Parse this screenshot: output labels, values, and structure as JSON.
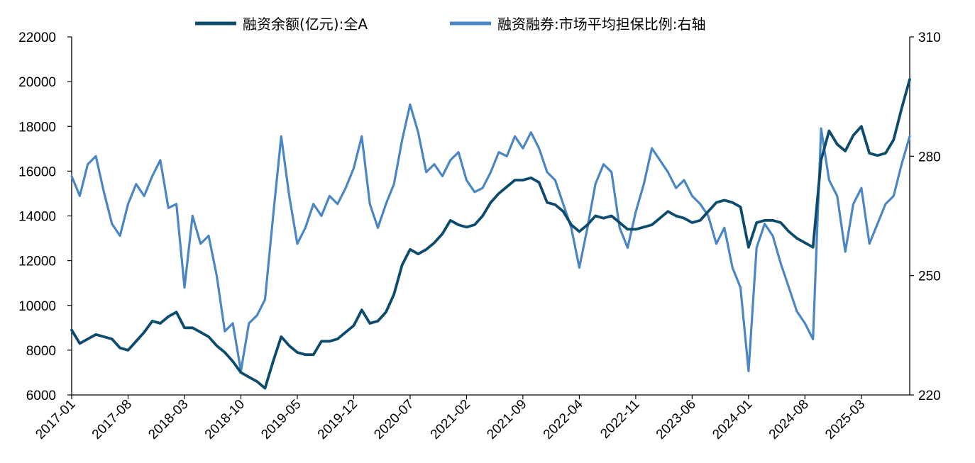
{
  "chart_data": {
    "type": "line",
    "title": "",
    "legend": {
      "placement": "top-center",
      "entries": [
        "融资余额(亿元):全A",
        "融资融券:市场平均担保比例:右轴"
      ]
    },
    "x_axis": {
      "tick_labels": [
        "2017-01",
        "2017-08",
        "2018-03",
        "2018-10",
        "2019-05",
        "2019-12",
        "2020-07",
        "2021-02",
        "2021-09",
        "2022-04",
        "2022-11",
        "2023-06",
        "2024-01",
        "2024-08",
        "2025-03"
      ],
      "range": [
        "2017-01",
        "2025-09"
      ]
    },
    "y_left": {
      "range": [
        6000,
        22000
      ],
      "tick_labels": [
        "6000",
        "8000",
        "10000",
        "12000",
        "14000",
        "16000",
        "18000",
        "20000",
        "22000"
      ]
    },
    "y_right": {
      "range": [
        220,
        310
      ],
      "tick_labels": [
        "220",
        "250",
        "280",
        "310"
      ]
    },
    "series": [
      {
        "name": "融资余额(亿元):全A",
        "axis": "left",
        "color": "#0d4b6e",
        "points": [
          [
            "2017-01",
            8900
          ],
          [
            "2017-02",
            8300
          ],
          [
            "2017-03",
            8500
          ],
          [
            "2017-04",
            8700
          ],
          [
            "2017-05",
            8600
          ],
          [
            "2017-06",
            8500
          ],
          [
            "2017-07",
            8100
          ],
          [
            "2017-08",
            8000
          ],
          [
            "2017-09",
            8400
          ],
          [
            "2017-10",
            8800
          ],
          [
            "2017-11",
            9300
          ],
          [
            "2017-12",
            9200
          ],
          [
            "2018-01",
            9500
          ],
          [
            "2018-02",
            9700
          ],
          [
            "2018-03",
            9000
          ],
          [
            "2018-04",
            9000
          ],
          [
            "2018-05",
            8800
          ],
          [
            "2018-06",
            8600
          ],
          [
            "2018-07",
            8200
          ],
          [
            "2018-08",
            7900
          ],
          [
            "2018-09",
            7500
          ],
          [
            "2018-10",
            7000
          ],
          [
            "2018-11",
            6800
          ],
          [
            "2018-12",
            6600
          ],
          [
            "2019-01",
            6300
          ],
          [
            "2019-02",
            7500
          ],
          [
            "2019-03",
            8600
          ],
          [
            "2019-04",
            8200
          ],
          [
            "2019-05",
            7900
          ],
          [
            "2019-06",
            7800
          ],
          [
            "2019-07",
            7800
          ],
          [
            "2019-08",
            8400
          ],
          [
            "2019-09",
            8400
          ],
          [
            "2019-10",
            8500
          ],
          [
            "2019-11",
            8800
          ],
          [
            "2019-12",
            9100
          ],
          [
            "2020-01",
            9800
          ],
          [
            "2020-02",
            9200
          ],
          [
            "2020-03",
            9300
          ],
          [
            "2020-04",
            9700
          ],
          [
            "2020-05",
            10500
          ],
          [
            "2020-06",
            11800
          ],
          [
            "2020-07",
            12500
          ],
          [
            "2020-08",
            12300
          ],
          [
            "2020-09",
            12500
          ],
          [
            "2020-10",
            12800
          ],
          [
            "2020-11",
            13200
          ],
          [
            "2020-12",
            13800
          ],
          [
            "2021-01",
            13600
          ],
          [
            "2021-02",
            13500
          ],
          [
            "2021-03",
            13600
          ],
          [
            "2021-04",
            14000
          ],
          [
            "2021-05",
            14600
          ],
          [
            "2021-06",
            15000
          ],
          [
            "2021-07",
            15300
          ],
          [
            "2021-08",
            15600
          ],
          [
            "2021-09",
            15600
          ],
          [
            "2021-10",
            15700
          ],
          [
            "2021-11",
            15500
          ],
          [
            "2021-12",
            14600
          ],
          [
            "2022-01",
            14500
          ],
          [
            "2022-02",
            14200
          ],
          [
            "2022-03",
            13600
          ],
          [
            "2022-04",
            13300
          ],
          [
            "2022-05",
            13600
          ],
          [
            "2022-06",
            14000
          ],
          [
            "2022-07",
            13900
          ],
          [
            "2022-08",
            14000
          ],
          [
            "2022-09",
            13700
          ],
          [
            "2022-10",
            13400
          ],
          [
            "2022-11",
            13400
          ],
          [
            "2022-12",
            13500
          ],
          [
            "2023-01",
            13600
          ],
          [
            "2023-02",
            13900
          ],
          [
            "2023-03",
            14200
          ],
          [
            "2023-04",
            14000
          ],
          [
            "2023-05",
            13900
          ],
          [
            "2023-06",
            13700
          ],
          [
            "2023-07",
            13800
          ],
          [
            "2023-08",
            14200
          ],
          [
            "2023-09",
            14600
          ],
          [
            "2023-10",
            14700
          ],
          [
            "2023-11",
            14600
          ],
          [
            "2023-12",
            14400
          ],
          [
            "2024-01",
            12600
          ],
          [
            "2024-02",
            13700
          ],
          [
            "2024-03",
            13800
          ],
          [
            "2024-04",
            13800
          ],
          [
            "2024-05",
            13700
          ],
          [
            "2024-06",
            13300
          ],
          [
            "2024-07",
            13000
          ],
          [
            "2024-08",
            12800
          ],
          [
            "2024-09",
            12600
          ],
          [
            "2024-10",
            16500
          ],
          [
            "2024-11",
            17800
          ],
          [
            "2024-12",
            17200
          ],
          [
            "2025-01",
            16900
          ],
          [
            "2025-02",
            17600
          ],
          [
            "2025-03",
            18000
          ],
          [
            "2025-04",
            16800
          ],
          [
            "2025-05",
            16700
          ],
          [
            "2025-06",
            16800
          ],
          [
            "2025-07",
            17400
          ],
          [
            "2025-08",
            18800
          ],
          [
            "2025-09",
            20100
          ]
        ]
      },
      {
        "name": "融资融券:市场平均担保比例:右轴",
        "axis": "right",
        "color": "#4a86c5",
        "points": [
          [
            "2017-01",
            275
          ],
          [
            "2017-02",
            270
          ],
          [
            "2017-03",
            278
          ],
          [
            "2017-04",
            280
          ],
          [
            "2017-05",
            271
          ],
          [
            "2017-06",
            263
          ],
          [
            "2017-07",
            260
          ],
          [
            "2017-08",
            268
          ],
          [
            "2017-09",
            273
          ],
          [
            "2017-10",
            270
          ],
          [
            "2017-11",
            275
          ],
          [
            "2017-12",
            279
          ],
          [
            "2018-01",
            267
          ],
          [
            "2018-02",
            268
          ],
          [
            "2018-03",
            247
          ],
          [
            "2018-04",
            265
          ],
          [
            "2018-05",
            258
          ],
          [
            "2018-06",
            260
          ],
          [
            "2018-07",
            250
          ],
          [
            "2018-08",
            236
          ],
          [
            "2018-09",
            238
          ],
          [
            "2018-10",
            226
          ],
          [
            "2018-11",
            238
          ],
          [
            "2018-12",
            240
          ],
          [
            "2019-01",
            244
          ],
          [
            "2019-02",
            265
          ],
          [
            "2019-03",
            285
          ],
          [
            "2019-04",
            270
          ],
          [
            "2019-05",
            258
          ],
          [
            "2019-06",
            262
          ],
          [
            "2019-07",
            268
          ],
          [
            "2019-08",
            265
          ],
          [
            "2019-09",
            270
          ],
          [
            "2019-10",
            268
          ],
          [
            "2019-11",
            272
          ],
          [
            "2019-12",
            277
          ],
          [
            "2020-01",
            285
          ],
          [
            "2020-02",
            268
          ],
          [
            "2020-03",
            262
          ],
          [
            "2020-04",
            268
          ],
          [
            "2020-05",
            273
          ],
          [
            "2020-06",
            284
          ],
          [
            "2020-07",
            293
          ],
          [
            "2020-08",
            286
          ],
          [
            "2020-09",
            276
          ],
          [
            "2020-10",
            278
          ],
          [
            "2020-11",
            275
          ],
          [
            "2020-12",
            279
          ],
          [
            "2021-01",
            281
          ],
          [
            "2021-02",
            274
          ],
          [
            "2021-03",
            271
          ],
          [
            "2021-04",
            272
          ],
          [
            "2021-05",
            276
          ],
          [
            "2021-06",
            281
          ],
          [
            "2021-07",
            280
          ],
          [
            "2021-08",
            285
          ],
          [
            "2021-09",
            282
          ],
          [
            "2021-10",
            286
          ],
          [
            "2021-11",
            282
          ],
          [
            "2021-12",
            276
          ],
          [
            "2022-01",
            274
          ],
          [
            "2022-02",
            268
          ],
          [
            "2022-03",
            262
          ],
          [
            "2022-04",
            252
          ],
          [
            "2022-05",
            262
          ],
          [
            "2022-06",
            273
          ],
          [
            "2022-07",
            278
          ],
          [
            "2022-08",
            276
          ],
          [
            "2022-09",
            262
          ],
          [
            "2022-10",
            257
          ],
          [
            "2022-11",
            266
          ],
          [
            "2022-12",
            273
          ],
          [
            "2023-01",
            282
          ],
          [
            "2023-02",
            279
          ],
          [
            "2023-03",
            276
          ],
          [
            "2023-04",
            272
          ],
          [
            "2023-05",
            274
          ],
          [
            "2023-06",
            270
          ],
          [
            "2023-07",
            268
          ],
          [
            "2023-08",
            265
          ],
          [
            "2023-09",
            258
          ],
          [
            "2023-10",
            262
          ],
          [
            "2023-11",
            252
          ],
          [
            "2023-12",
            247
          ],
          [
            "2024-01",
            226
          ],
          [
            "2024-02",
            257
          ],
          [
            "2024-03",
            263
          ],
          [
            "2024-04",
            260
          ],
          [
            "2024-05",
            253
          ],
          [
            "2024-06",
            247
          ],
          [
            "2024-07",
            241
          ],
          [
            "2024-08",
            238
          ],
          [
            "2024-09",
            234
          ],
          [
            "2024-10",
            287
          ],
          [
            "2024-11",
            274
          ],
          [
            "2024-12",
            270
          ],
          [
            "2025-01",
            256
          ],
          [
            "2025-02",
            268
          ],
          [
            "2025-03",
            272
          ],
          [
            "2025-04",
            258
          ],
          [
            "2025-05",
            263
          ],
          [
            "2025-06",
            268
          ],
          [
            "2025-07",
            270
          ],
          [
            "2025-08",
            278
          ],
          [
            "2025-09",
            285
          ]
        ]
      }
    ]
  }
}
